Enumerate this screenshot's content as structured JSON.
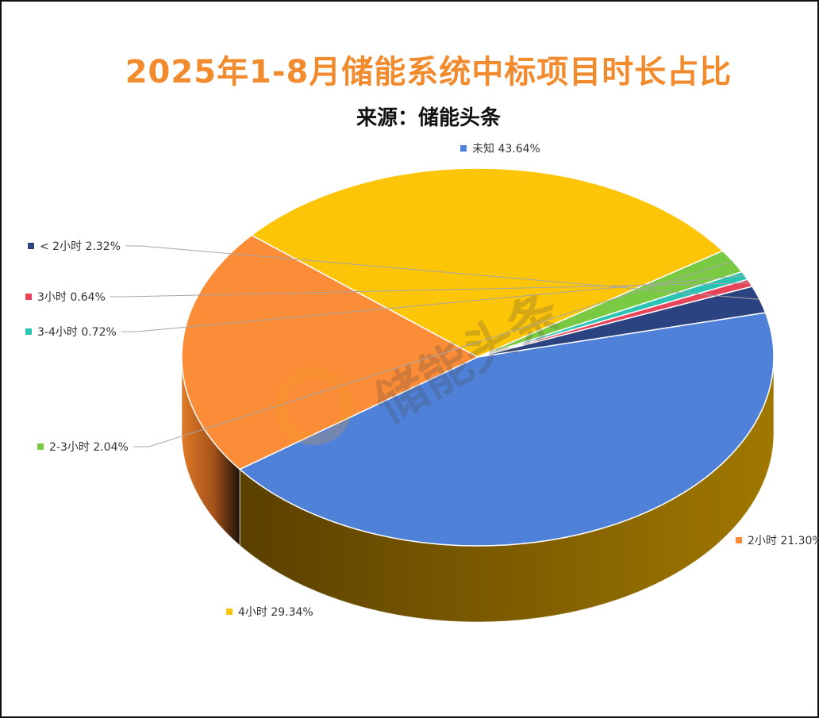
{
  "chart_data": {
    "type": "pie",
    "title": "2025年1-8月储能系统中标项目时长占比",
    "subtitle": "来源：储能头条",
    "watermark": "储能头条",
    "slices": [
      {
        "name": "未知",
        "value": 43.64,
        "label": "未知 43.64%",
        "color": "#5081d8"
      },
      {
        "name": "2小时",
        "value": 21.3,
        "label": "2小时 21.30%",
        "color": "#fb8c38"
      },
      {
        "name": "4小时",
        "value": 29.34,
        "label": "4小时 29.34%",
        "color": "#fdc507"
      },
      {
        "name": "2-3小时",
        "value": 2.04,
        "label": "2-3小时 2.04%",
        "color": "#7ac943"
      },
      {
        "name": "3-4小时",
        "value": 0.72,
        "label": "3-4小时 0.72%",
        "color": "#2bc4b4"
      },
      {
        "name": "3小时",
        "value": 0.64,
        "label": "3小时 0.64%",
        "color": "#e8455a"
      },
      {
        "name": "<2小时",
        "value": 2.32,
        "label": "< 2小时 2.32%",
        "color": "#2b4381"
      }
    ],
    "legend": "labels beside slices"
  }
}
